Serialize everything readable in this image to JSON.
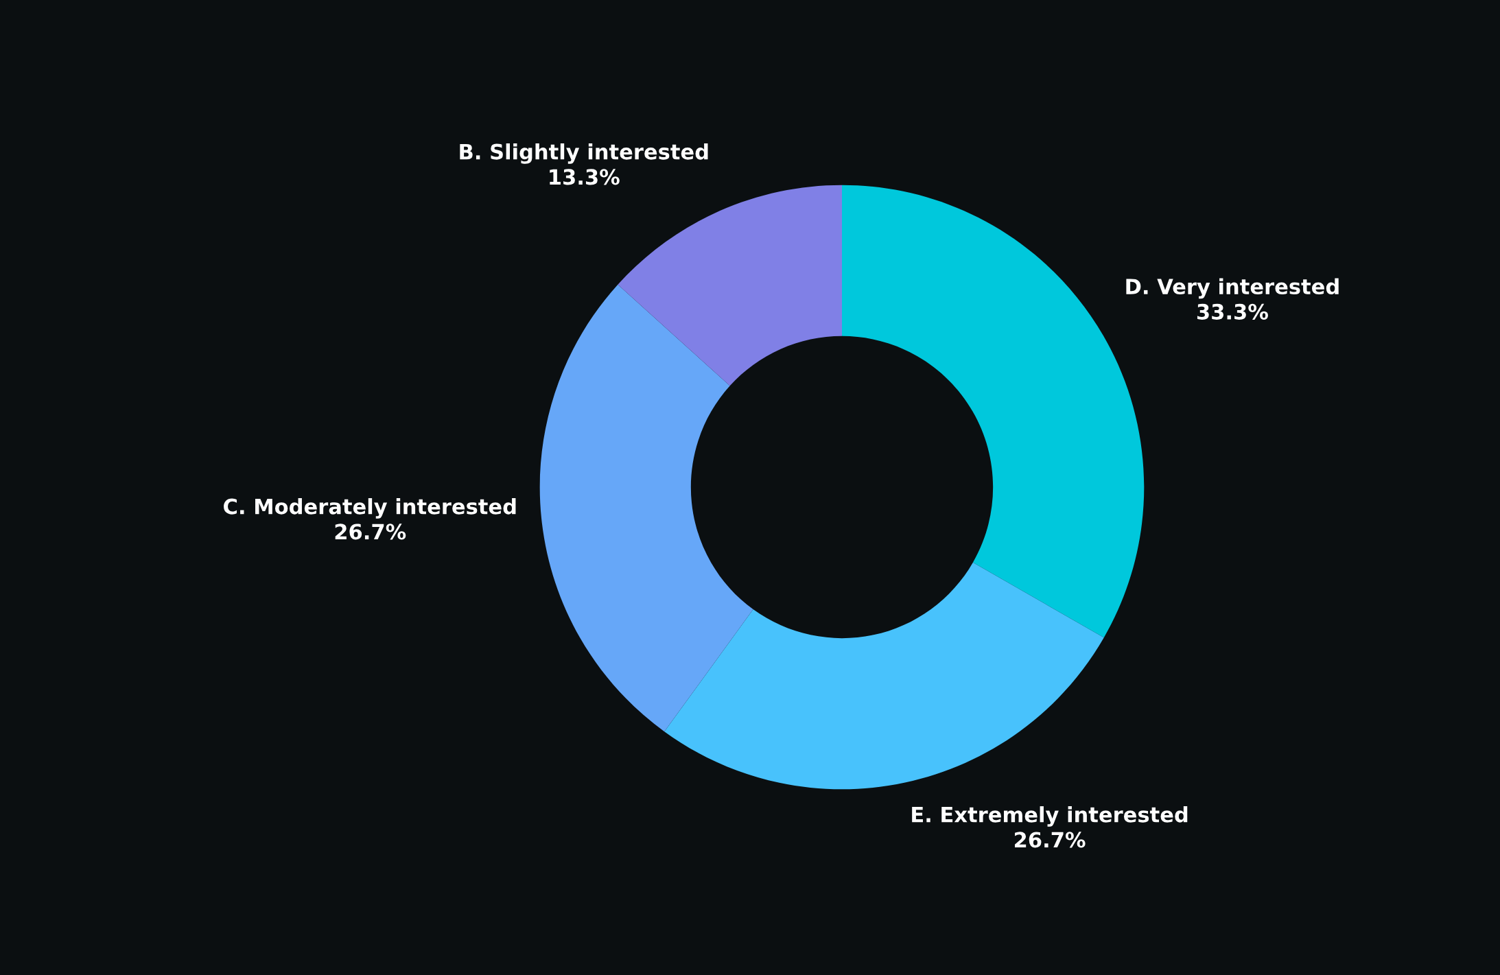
{
  "chart_data": {
    "type": "donut",
    "categories": [
      "D. Very interested",
      "E. Extremely interested",
      "C. Moderately interested",
      "B. Slightly interested"
    ],
    "values": [
      33.3,
      26.7,
      26.7,
      13.3
    ],
    "value_labels": [
      "33.3%",
      "26.7%",
      "26.7%",
      "13.3%"
    ],
    "colors": [
      "#00c8dc",
      "#48c2fc",
      "#66a7f8",
      "#8080e6"
    ],
    "legend": false
  }
}
